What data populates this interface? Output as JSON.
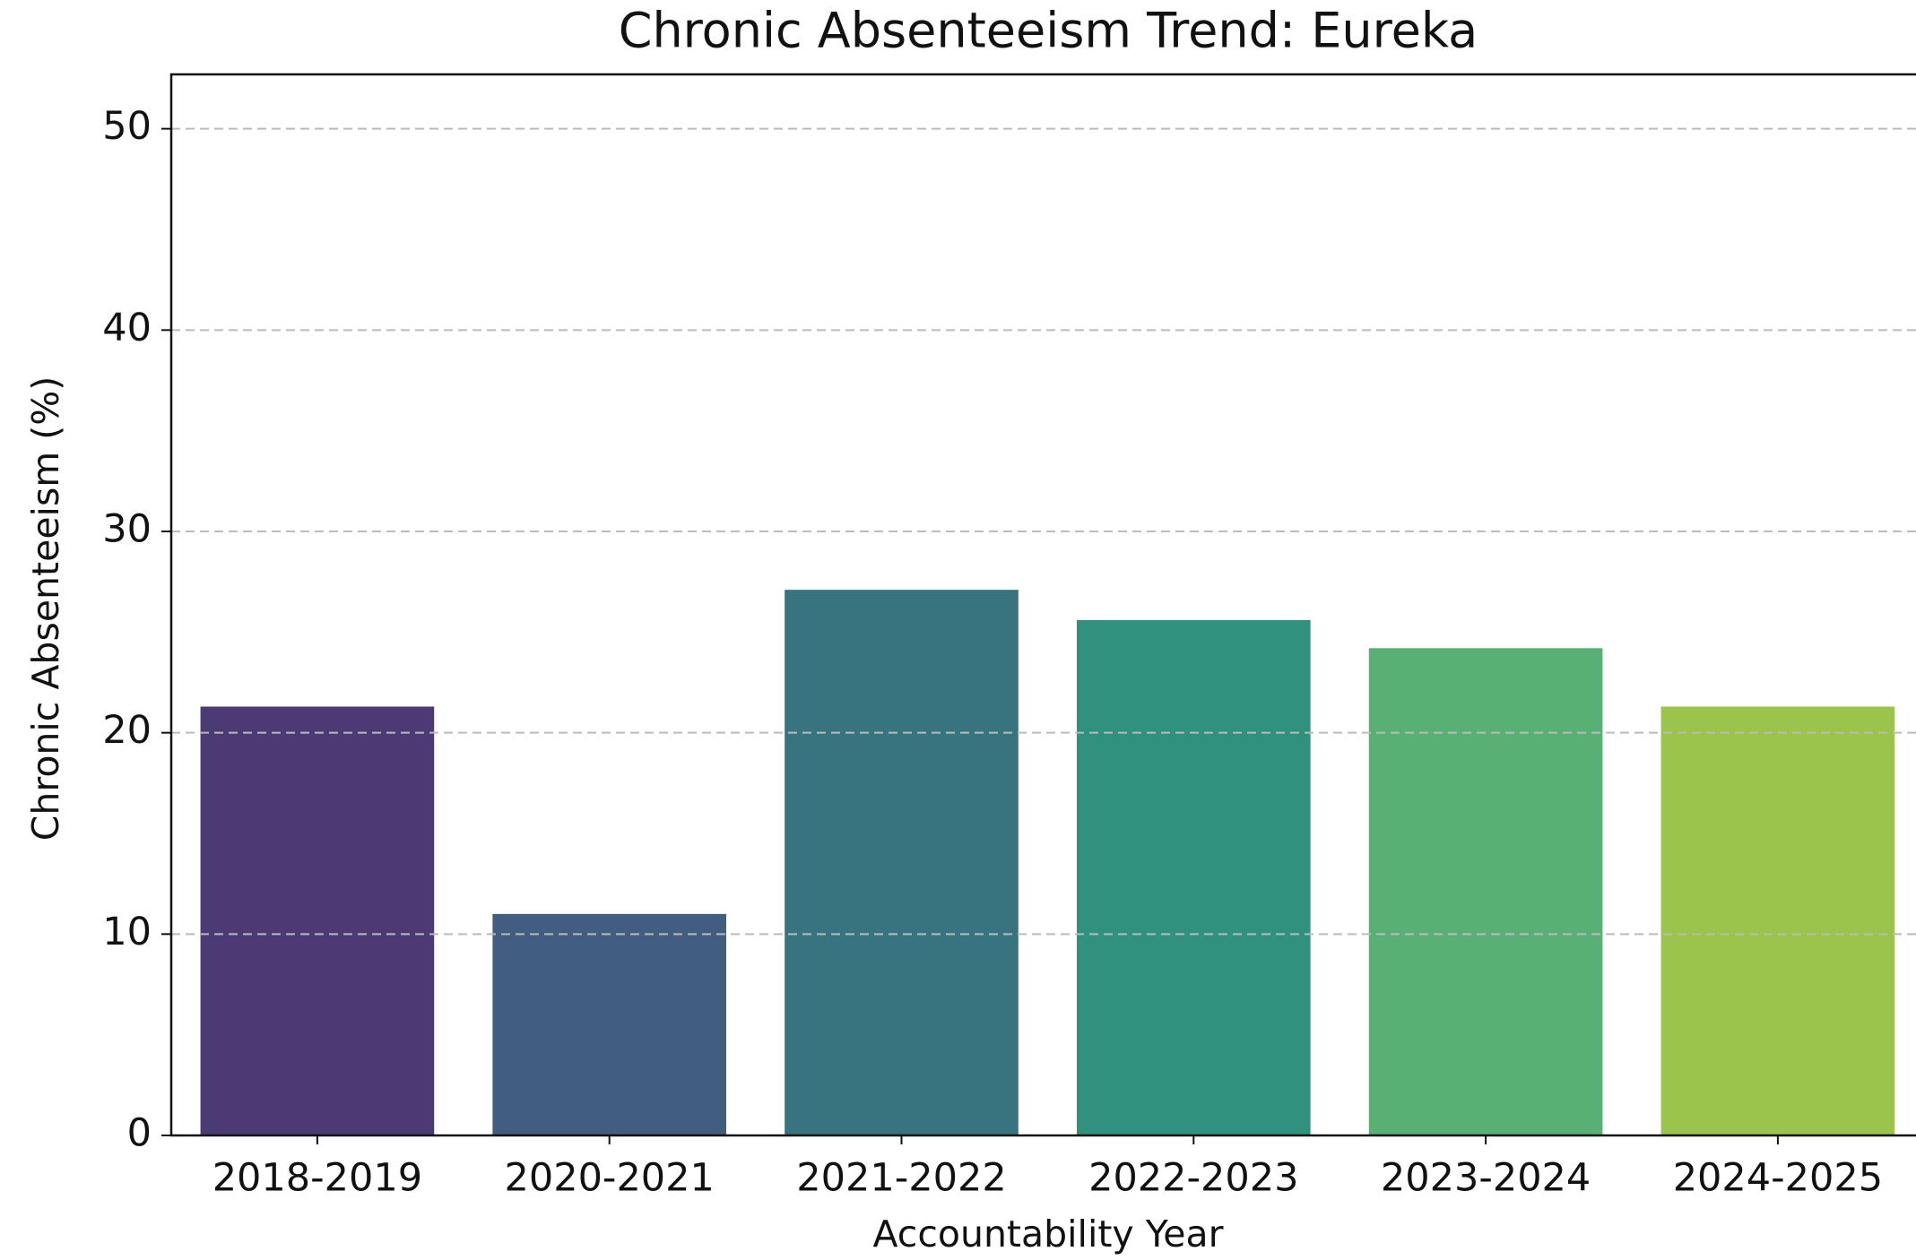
{
  "chart_data": {
    "type": "bar",
    "title": "Chronic Absenteeism Trend: Eureka",
    "xlabel": "Accountability Year",
    "ylabel": "Chronic Absenteeism (%)",
    "categories": [
      "2018-2019",
      "2020-2021",
      "2021-2022",
      "2022-2023",
      "2023-2024",
      "2024-2025"
    ],
    "values": [
      21.3,
      11.0,
      27.1,
      25.6,
      24.2,
      21.3
    ],
    "colors": [
      "#4b3a74",
      "#415e80",
      "#36757f",
      "#31917f",
      "#58b075",
      "#9bc44c"
    ],
    "ylim": [
      0,
      52.7
    ],
    "yticks": [
      0,
      10,
      20,
      30,
      40,
      50
    ],
    "grid": true
  }
}
